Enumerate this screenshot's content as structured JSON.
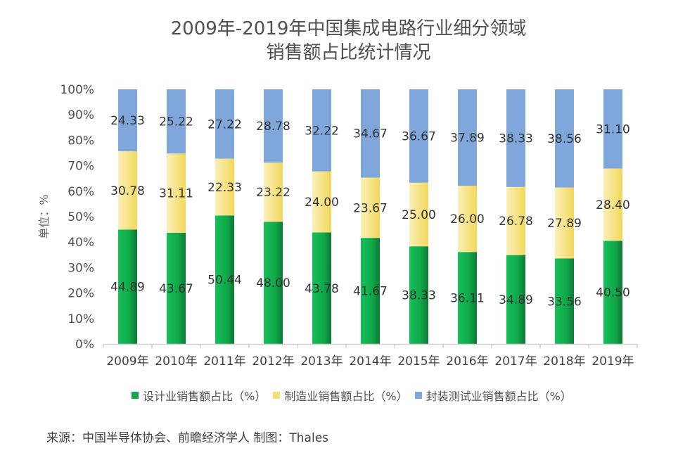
{
  "title_line1": "2009年-2019年中国集成电路行业细分领域",
  "title_line2": "销售额占比统计情况",
  "y_axis_unit_label": "单位：%",
  "source_text": "来源：中国半导体协会、前瞻经济学人    制图：Thales",
  "chart_data": {
    "type": "bar",
    "stacked": true,
    "title": "2009年-2019年中国集成电路行业细分领域销售额占比统计情况",
    "xlabel": "",
    "ylabel": "单位：%",
    "ylim": [
      0,
      100
    ],
    "y_ticks": [
      "0%",
      "10%",
      "20%",
      "30%",
      "40%",
      "50%",
      "60%",
      "70%",
      "80%",
      "90%",
      "100%"
    ],
    "categories": [
      "2009年",
      "2010年",
      "2011年",
      "2012年",
      "2013年",
      "2014年",
      "2015年",
      "2016年",
      "2017年",
      "2018年",
      "2019年"
    ],
    "series": [
      {
        "name": "设计业销售额占比（%）",
        "color": "#12a84a",
        "values": [
          44.89,
          43.67,
          50.44,
          48.0,
          43.78,
          41.67,
          38.33,
          36.11,
          34.89,
          33.56,
          40.5
        ]
      },
      {
        "name": "制造业销售额占比（%）",
        "color": "#f4de78",
        "values": [
          30.78,
          31.11,
          22.33,
          23.22,
          24.0,
          23.67,
          25.0,
          26.0,
          26.78,
          27.89,
          28.4
        ]
      },
      {
        "name": "封装测试业销售额占比（%）",
        "color": "#7fa7dc",
        "values": [
          24.33,
          25.22,
          27.22,
          28.78,
          32.22,
          34.67,
          36.67,
          37.89,
          38.33,
          38.56,
          31.1
        ]
      }
    ],
    "data_labels": true,
    "legend_position": "bottom",
    "grid": false
  }
}
